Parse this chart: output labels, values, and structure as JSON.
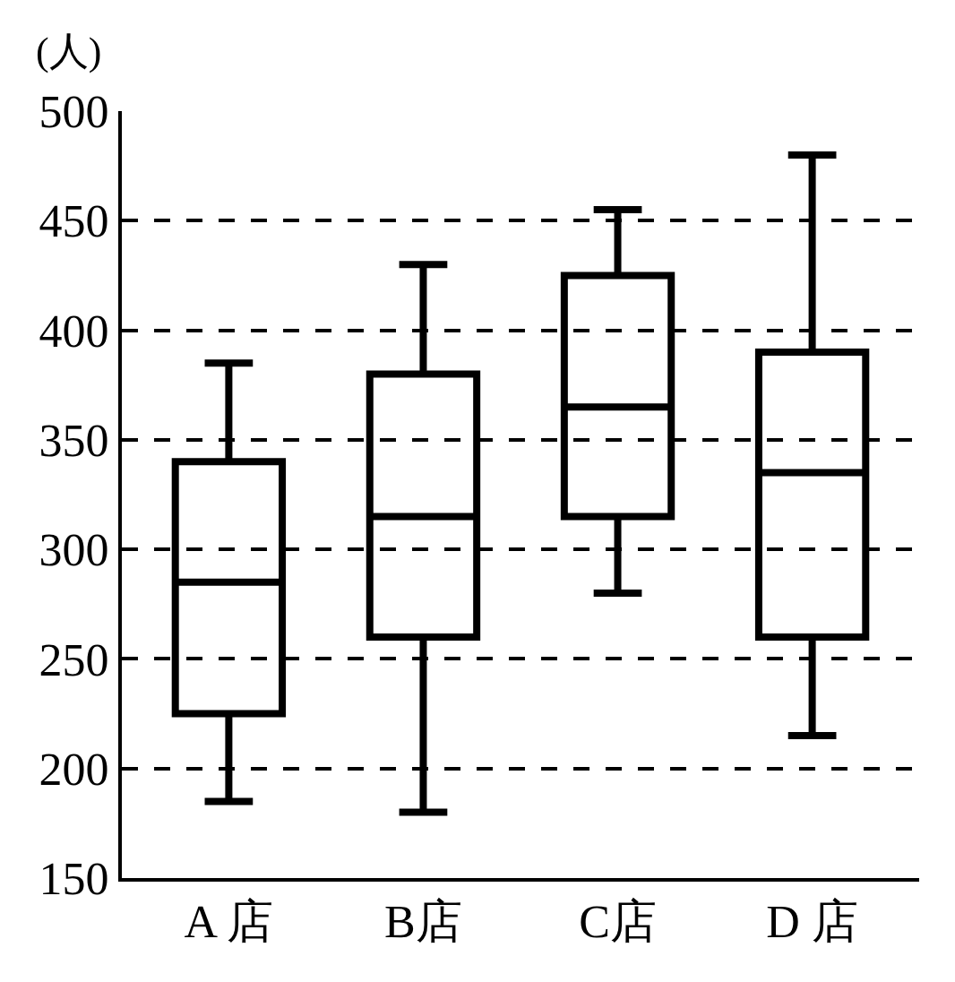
{
  "chart_data": {
    "type": "box",
    "ylabel": "(人)",
    "categories": [
      "A 店",
      "B店",
      "C店",
      "D 店"
    ],
    "boxes": [
      {
        "low": 185,
        "q1": 225,
        "median": 285,
        "q3": 340,
        "high": 385
      },
      {
        "low": 180,
        "q1": 260,
        "median": 315,
        "q3": 380,
        "high": 430
      },
      {
        "low": 280,
        "q1": 315,
        "median": 365,
        "q3": 425,
        "high": 455
      },
      {
        "low": 215,
        "q1": 260,
        "median": 335,
        "q3": 390,
        "high": 480
      }
    ],
    "color": "#000000",
    "ylim": [
      150,
      500
    ],
    "yticks": [
      150,
      200,
      250,
      300,
      350,
      400,
      450,
      500
    ],
    "grid": "y",
    "legend": false
  }
}
